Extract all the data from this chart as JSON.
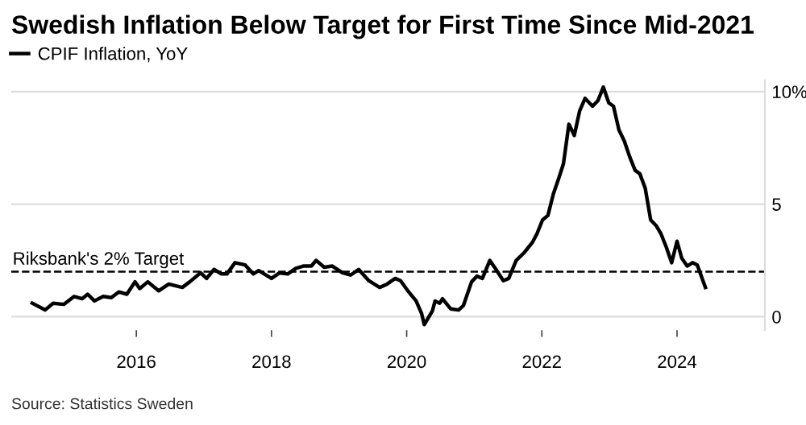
{
  "chart_data": {
    "type": "line",
    "title": "Swedish Inflation Below Target for First Time Since Mid-2021",
    "x": [
      2014.46,
      2014.65,
      2014.77,
      2014.93,
      2015.08,
      2015.2,
      2015.28,
      2015.38,
      2015.51,
      2015.63,
      2015.74,
      2015.86,
      2015.98,
      2016.05,
      2016.17,
      2016.33,
      2016.48,
      2016.68,
      2016.79,
      2016.95,
      2017.04,
      2017.15,
      2017.26,
      2017.34,
      2017.46,
      2017.61,
      2017.73,
      2017.81,
      2018.0,
      2018.12,
      2018.24,
      2018.36,
      2018.47,
      2018.59,
      2018.66,
      2018.78,
      2018.9,
      2019.05,
      2019.17,
      2019.29,
      2019.44,
      2019.6,
      2019.71,
      2019.83,
      2019.91,
      2020.03,
      2020.14,
      2020.22,
      2020.26,
      2020.38,
      2020.42,
      2020.49,
      2020.53,
      2020.65,
      2020.77,
      2020.84,
      2020.96,
      2021.04,
      2021.12,
      2021.23,
      2021.31,
      2021.43,
      2021.51,
      2021.62,
      2021.74,
      2021.86,
      2021.93,
      2022.01,
      2022.09,
      2022.17,
      2022.25,
      2022.32,
      2022.4,
      2022.48,
      2022.56,
      2022.64,
      2022.75,
      2022.83,
      2022.91,
      2022.99,
      2023.06,
      2023.14,
      2023.22,
      2023.3,
      2023.38,
      2023.45,
      2023.53,
      2023.61,
      2023.69,
      2023.76,
      2023.84,
      2023.92,
      2024.0,
      2024.07,
      2024.15,
      2024.23,
      2024.3,
      2024.42
    ],
    "series": [
      {
        "name": "CPIF Inflation, YoY",
        "color": "#000000",
        "values": [
          0.6,
          0.3,
          0.6,
          0.55,
          0.9,
          0.8,
          1.0,
          0.7,
          0.9,
          0.85,
          1.1,
          1.0,
          1.55,
          1.25,
          1.55,
          1.15,
          1.45,
          1.3,
          1.55,
          1.95,
          1.7,
          2.1,
          1.9,
          1.9,
          2.4,
          2.3,
          1.9,
          2.05,
          1.7,
          1.95,
          1.9,
          2.15,
          2.25,
          2.25,
          2.5,
          2.2,
          2.25,
          1.95,
          1.85,
          2.1,
          1.6,
          1.3,
          1.45,
          1.7,
          1.6,
          1.1,
          0.7,
          0.15,
          -0.35,
          0.25,
          0.7,
          0.6,
          0.8,
          0.35,
          0.3,
          0.5,
          1.55,
          1.8,
          1.7,
          2.5,
          2.15,
          1.6,
          1.7,
          2.5,
          2.85,
          3.3,
          3.7,
          4.3,
          4.5,
          5.45,
          6.15,
          6.8,
          8.55,
          8.05,
          9.15,
          9.7,
          9.35,
          9.6,
          10.2,
          9.5,
          9.35,
          8.3,
          7.8,
          7.1,
          6.5,
          6.35,
          5.7,
          4.3,
          4.05,
          3.7,
          3.1,
          2.4,
          3.35,
          2.6,
          2.25,
          2.4,
          2.3,
          1.3
        ]
      }
    ],
    "xlim": [
      2014.15,
      2025.3
    ],
    "ylim": [
      -0.6,
      10.5
    ],
    "xticks": [
      2016,
      2018,
      2020,
      2022,
      2024
    ],
    "yticks": [
      0,
      5,
      {
        "value": 10,
        "label": "10%"
      }
    ],
    "grid": "y",
    "legend": "top left",
    "line_style": "solid",
    "marker": "none",
    "ref_lines": [
      {
        "axis": "y",
        "value": 2,
        "label": "Riksbank's 2% Target",
        "color": "#000000",
        "line_style": "dashed"
      }
    ],
    "annotations": [
      "Source: Statistics Sweden"
    ]
  }
}
